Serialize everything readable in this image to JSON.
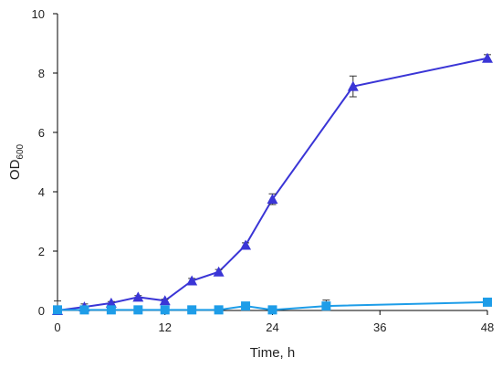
{
  "chart_data": {
    "type": "line",
    "xlabel": "Time, h",
    "ylabel": {
      "main": "OD",
      "sub": "600"
    },
    "xlim": [
      0,
      48
    ],
    "ylim": [
      0,
      10
    ],
    "xticks": [
      0,
      12,
      24,
      36,
      48
    ],
    "yticks": [
      0,
      2,
      4,
      6,
      8,
      10
    ],
    "grid": false,
    "legend": "none",
    "series": [
      {
        "marker": "triangle",
        "color": "#3a35d6",
        "x": [
          0,
          3,
          6,
          9,
          12,
          15,
          18,
          21,
          24,
          33,
          48
        ],
        "y": [
          0.0,
          0.12,
          0.25,
          0.45,
          0.33,
          1.0,
          1.3,
          2.2,
          3.75,
          7.55,
          8.5
        ],
        "err": [
          0.0,
          0.1,
          0.05,
          0.05,
          0.05,
          0.08,
          0.08,
          0.08,
          0.18,
          0.35,
          0.12
        ]
      },
      {
        "marker": "square",
        "color": "#1e9de8",
        "x": [
          0,
          3,
          6,
          9,
          12,
          15,
          18,
          21,
          24,
          30,
          48
        ],
        "y": [
          0.02,
          0.02,
          0.02,
          0.02,
          0.02,
          0.02,
          0.02,
          0.15,
          0.02,
          0.15,
          0.28
        ],
        "err": [
          0.3,
          0.0,
          0.0,
          0.0,
          0.0,
          0.0,
          0.0,
          0.0,
          0.0,
          0.2,
          0.0
        ]
      }
    ]
  }
}
